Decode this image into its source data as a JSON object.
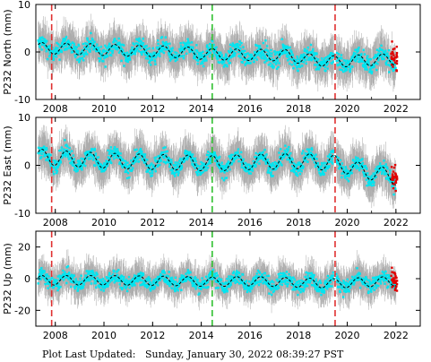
{
  "footer_text": "Plot Last Updated:   Sunday, January 30, 2022 08:39:27 PST",
  "colors": {
    "data_points": "#00e5f0",
    "error_bars": "#a8a8a8",
    "model_line": "#000000",
    "outliers": "#e00000",
    "equipment_change_marker": "#e03030",
    "earthquake_marker": "#30c030"
  },
  "chart_data": [
    {
      "type": "scatter",
      "ylabel": "P232 North (mm)",
      "xlim": [
        2007.2,
        2023.0
      ],
      "ylim": [
        -10,
        10
      ],
      "yticks": [
        -10,
        0,
        10
      ],
      "xticks": [
        2008,
        2010,
        2012,
        2014,
        2016,
        2018,
        2020,
        2022
      ],
      "trend": [
        [
          2007.3,
          0.8
        ],
        [
          2009,
          0.6
        ],
        [
          2011,
          0.3
        ],
        [
          2013,
          0.0
        ],
        [
          2014.45,
          -0.5
        ],
        [
          2016,
          -0.6
        ],
        [
          2017.5,
          -0.7
        ],
        [
          2018.3,
          -1.5
        ],
        [
          2019.5,
          -2.0
        ],
        [
          2020.5,
          -1.8
        ],
        [
          2022.0,
          -1.5
        ]
      ],
      "seasonal_amplitude": 1.2,
      "scatter_spread": 1.8,
      "error_spread": 4.0,
      "vlines": [
        {
          "x": 2007.85,
          "kind": "red"
        },
        {
          "x": 2014.45,
          "kind": "green"
        },
        {
          "x": 2019.5,
          "kind": "red"
        }
      ]
    },
    {
      "type": "scatter",
      "ylabel": "P232 East (mm)",
      "xlim": [
        2007.2,
        2023.0
      ],
      "ylim": [
        -10,
        10
      ],
      "yticks": [
        -10,
        0,
        10
      ],
      "xticks": [
        2008,
        2010,
        2012,
        2014,
        2016,
        2018,
        2020,
        2022
      ],
      "trend": [
        [
          2007.3,
          1.8
        ],
        [
          2009,
          1.2
        ],
        [
          2011,
          0.8
        ],
        [
          2013,
          0.6
        ],
        [
          2014.45,
          0.4
        ],
        [
          2016,
          0.7
        ],
        [
          2018,
          0.9
        ],
        [
          2019.5,
          0.5
        ],
        [
          2020.5,
          -1.0
        ],
        [
          2022.0,
          -2.5
        ]
      ],
      "seasonal_amplitude": 1.6,
      "scatter_spread": 1.6,
      "error_spread": 4.0,
      "vlines": [
        {
          "x": 2007.85,
          "kind": "red"
        },
        {
          "x": 2014.45,
          "kind": "green"
        },
        {
          "x": 2019.5,
          "kind": "red"
        }
      ]
    },
    {
      "type": "scatter",
      "ylabel": "P232 Up (mm)",
      "xlim": [
        2007.2,
        2023.0
      ],
      "ylim": [
        -30,
        30
      ],
      "yticks": [
        -20,
        0,
        20
      ],
      "xticks": [
        2008,
        2010,
        2012,
        2014,
        2016,
        2018,
        2020,
        2022
      ],
      "trend": [
        [
          2007.3,
          -1.0
        ],
        [
          2010,
          -1.0
        ],
        [
          2013,
          -1.5
        ],
        [
          2014.45,
          -2.0
        ],
        [
          2016,
          -1.5
        ],
        [
          2018,
          -2.5
        ],
        [
          2019.5,
          -3.0
        ],
        [
          2022.0,
          -1.5
        ]
      ],
      "seasonal_amplitude": 3.0,
      "scatter_spread": 4.5,
      "error_spread": 10.0,
      "vlines": [
        {
          "x": 2007.85,
          "kind": "red"
        },
        {
          "x": 2014.45,
          "kind": "green"
        },
        {
          "x": 2019.5,
          "kind": "red"
        }
      ]
    }
  ]
}
